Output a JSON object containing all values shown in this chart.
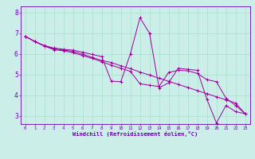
{
  "title": "",
  "xlabel": "Windchill (Refroidissement éolien,°C)",
  "background_color": "#cceee8",
  "line_color": "#990099",
  "axis_color": "#6600aa",
  "grid_color": "#aaddcc",
  "xlim": [
    -0.5,
    23.5
  ],
  "ylim": [
    2.6,
    8.3
  ],
  "yticks": [
    3,
    4,
    5,
    6,
    7,
    8
  ],
  "xticks": [
    0,
    1,
    2,
    3,
    4,
    5,
    6,
    7,
    8,
    9,
    10,
    11,
    12,
    13,
    14,
    15,
    16,
    17,
    18,
    19,
    20,
    21,
    22,
    23
  ],
  "series": [
    [
      6.85,
      6.6,
      6.4,
      6.28,
      6.22,
      6.18,
      6.08,
      5.97,
      5.87,
      4.68,
      4.65,
      6.0,
      7.75,
      7.0,
      4.35,
      4.6,
      5.3,
      5.25,
      5.2,
      3.8,
      2.65,
      3.5,
      3.2,
      3.1
    ],
    [
      6.85,
      6.6,
      6.38,
      6.25,
      6.18,
      6.12,
      5.98,
      5.83,
      5.68,
      5.58,
      5.42,
      5.28,
      5.12,
      4.97,
      4.82,
      4.67,
      4.52,
      4.37,
      4.22,
      4.07,
      3.92,
      3.77,
      3.62,
      3.1
    ],
    [
      6.85,
      6.6,
      6.38,
      6.2,
      6.15,
      6.05,
      5.92,
      5.78,
      5.62,
      5.45,
      5.3,
      5.15,
      4.55,
      4.48,
      4.42,
      5.1,
      5.2,
      5.18,
      5.05,
      4.75,
      4.65,
      3.85,
      3.5,
      3.1
    ]
  ]
}
